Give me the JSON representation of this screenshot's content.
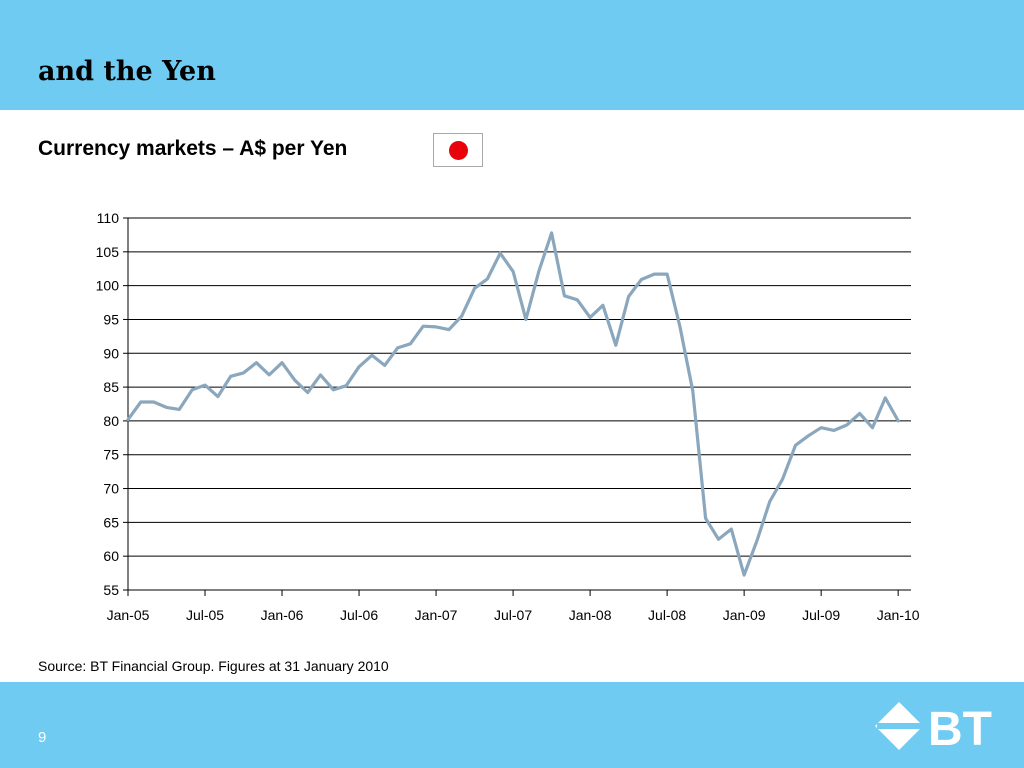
{
  "header": {
    "title": "and the Yen"
  },
  "subtitle": "Currency markets – A$ per Yen",
  "flag_icon": "japan-flag-icon",
  "source_note": "Source: BT Financial Group. Figures at 31 January 2010",
  "page_number": "9",
  "logo": {
    "icon": "bt-logo-icon",
    "text": "BT"
  },
  "colors": {
    "header_band": "#6fcbf2",
    "footer_band": "#6fcbf2",
    "line": "#8aa7bd",
    "flag_disc": "#e8000b",
    "logo": "#ffffff"
  },
  "chart_data": {
    "type": "line",
    "title": "",
    "xlabel": "",
    "ylabel": "",
    "ylim": [
      55,
      110
    ],
    "yticks": [
      55,
      60,
      65,
      70,
      75,
      80,
      85,
      90,
      95,
      100,
      105,
      110
    ],
    "xlim": [
      "2005-01",
      "2010-02"
    ],
    "xticks": [
      "Jan-05",
      "Jul-05",
      "Jan-06",
      "Jul-06",
      "Jan-07",
      "Jul-07",
      "Jan-08",
      "Jul-08",
      "Jan-09",
      "Jul-09",
      "Jan-10"
    ],
    "grid": "horizontal",
    "legend": "none",
    "series": [
      {
        "x": [
          "2005-01",
          "2005-02",
          "2005-03",
          "2005-04",
          "2005-05",
          "2005-06",
          "2005-07",
          "2005-08",
          "2005-09",
          "2005-10",
          "2005-11",
          "2005-12",
          "2006-01",
          "2006-02",
          "2006-03",
          "2006-04",
          "2006-05",
          "2006-06",
          "2006-07",
          "2006-08",
          "2006-09",
          "2006-10",
          "2006-11",
          "2006-12",
          "2007-01",
          "2007-02",
          "2007-03",
          "2007-04",
          "2007-05",
          "2007-06",
          "2007-07",
          "2007-08",
          "2007-09",
          "2007-10",
          "2007-11",
          "2007-12",
          "2008-01",
          "2008-02",
          "2008-03",
          "2008-04",
          "2008-05",
          "2008-06",
          "2008-07",
          "2008-08",
          "2008-09",
          "2008-10",
          "2008-11",
          "2008-12",
          "2009-01",
          "2009-02",
          "2009-03",
          "2009-04",
          "2009-05",
          "2009-06",
          "2009-07",
          "2009-08",
          "2009-09",
          "2009-10",
          "2009-11",
          "2009-12",
          "2010-01"
        ],
        "values": [
          80.2,
          82.8,
          82.8,
          82.0,
          81.7,
          84.6,
          85.3,
          83.6,
          86.6,
          87.1,
          88.6,
          86.8,
          88.6,
          86.0,
          84.2,
          86.8,
          84.6,
          85.2,
          88.0,
          89.7,
          88.2,
          90.8,
          91.4,
          94.0,
          93.9,
          93.5,
          95.5,
          99.6,
          101.0,
          104.8,
          102.1,
          95.0,
          102.1,
          107.8,
          98.5,
          97.9,
          95.3,
          97.1,
          91.2,
          98.4,
          100.9,
          101.7,
          101.7,
          93.9,
          84.4,
          65.6,
          62.5,
          64.0,
          57.2,
          62.3,
          68.1,
          71.4,
          76.4,
          77.8,
          79.0,
          78.6,
          79.4,
          81.1,
          79.0,
          83.4,
          80.0
        ]
      }
    ]
  }
}
